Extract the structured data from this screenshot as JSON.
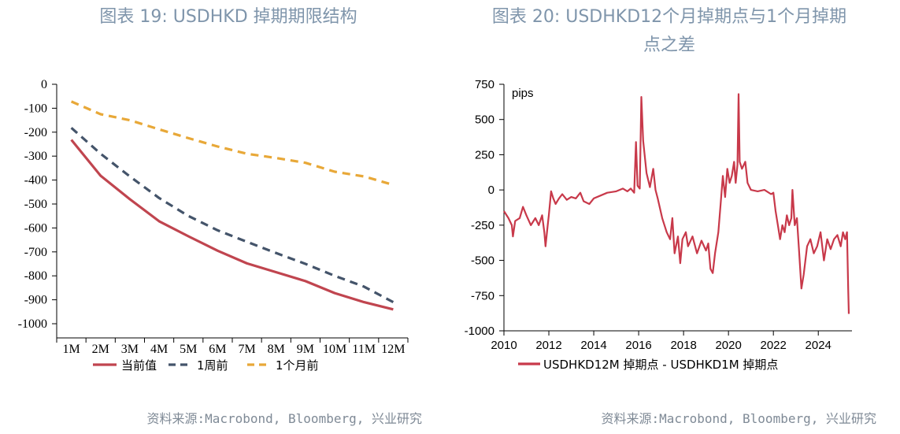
{
  "left_panel": {
    "title": "图表 19:    USDHKD 掉期期限结构",
    "source": "资料来源:Macrobond, Bloomberg, 兴业研究"
  },
  "right_panel": {
    "title_line1": "图表 20:    USDHKD12个月掉期点与1个月掉期",
    "title_line2": "点之差",
    "source": "资料来源:Macrobond, Bloomberg, 兴业研究"
  },
  "chart_data": [
    {
      "type": "line",
      "categories": [
        "1M",
        "2M",
        "3M",
        "4M",
        "5M",
        "6M",
        "7M",
        "8M",
        "9M",
        "10M",
        "11M",
        "12M"
      ],
      "ylim": [
        -1000,
        0
      ],
      "yticks": [
        "0",
        "-100",
        "-200",
        "-300",
        "-400",
        "-500",
        "-600",
        "-700",
        "-800",
        "-900",
        "-1000"
      ],
      "grid": false,
      "legend_position": "bottom",
      "series": [
        {
          "name": "当前值",
          "color": "#c0454f",
          "dash": "solid",
          "values": [
            -232,
            -382,
            -480,
            -572,
            -635,
            -695,
            -748,
            -785,
            -822,
            -872,
            -910,
            -940
          ]
        },
        {
          "name": "1周前",
          "color": "#44546a",
          "dash": "dashed",
          "values": [
            -182,
            -290,
            -385,
            -475,
            -550,
            -610,
            -658,
            -705,
            -750,
            -800,
            -845,
            -910
          ]
        },
        {
          "name": "1个月前",
          "color": "#e8a838",
          "dash": "dashed",
          "values": [
            -72,
            -125,
            -150,
            -188,
            -225,
            -260,
            -290,
            -308,
            -328,
            -365,
            -385,
            -420
          ]
        }
      ]
    },
    {
      "type": "line",
      "unit_label": "pips",
      "xlim": [
        2010,
        2025.5
      ],
      "ylim": [
        -1000,
        750
      ],
      "xticks": [
        "2010",
        "2012",
        "2014",
        "2016",
        "2018",
        "2020",
        "2022",
        "2024"
      ],
      "yticks": [
        "750",
        "500",
        "250",
        "0",
        "-250",
        "-500",
        "-750",
        "-1000"
      ],
      "grid": false,
      "legend_position": "bottom",
      "series": [
        {
          "name": "USDHKD12M 掉期点 - USDHKD1M 掉期点",
          "color": "#c8394a",
          "points": [
            [
              2010.0,
              -150
            ],
            [
              2010.2,
              -200
            ],
            [
              2010.35,
              -250
            ],
            [
              2010.4,
              -330
            ],
            [
              2010.5,
              -220
            ],
            [
              2010.7,
              -200
            ],
            [
              2010.85,
              -120
            ],
            [
              2011.0,
              -180
            ],
            [
              2011.2,
              -250
            ],
            [
              2011.4,
              -200
            ],
            [
              2011.55,
              -250
            ],
            [
              2011.7,
              -180
            ],
            [
              2011.8,
              -300
            ],
            [
              2011.85,
              -400
            ],
            [
              2011.95,
              -250
            ],
            [
              2012.0,
              -180
            ],
            [
              2012.1,
              -10
            ],
            [
              2012.2,
              -60
            ],
            [
              2012.3,
              -100
            ],
            [
              2012.45,
              -60
            ],
            [
              2012.6,
              -30
            ],
            [
              2012.8,
              -70
            ],
            [
              2013.0,
              -50
            ],
            [
              2013.2,
              -60
            ],
            [
              2013.4,
              -20
            ],
            [
              2013.55,
              -80
            ],
            [
              2013.8,
              -100
            ],
            [
              2014.0,
              -60
            ],
            [
              2014.3,
              -40
            ],
            [
              2014.6,
              -20
            ],
            [
              2015.0,
              -10
            ],
            [
              2015.3,
              10
            ],
            [
              2015.5,
              -10
            ],
            [
              2015.65,
              10
            ],
            [
              2015.8,
              -20
            ],
            [
              2015.88,
              340
            ],
            [
              2015.95,
              30
            ],
            [
              2016.05,
              10
            ],
            [
              2016.12,
              660
            ],
            [
              2016.2,
              350
            ],
            [
              2016.35,
              120
            ],
            [
              2016.5,
              20
            ],
            [
              2016.65,
              150
            ],
            [
              2016.75,
              0
            ],
            [
              2016.85,
              -60
            ],
            [
              2017.05,
              -200
            ],
            [
              2017.25,
              -300
            ],
            [
              2017.4,
              -350
            ],
            [
              2017.5,
              -200
            ],
            [
              2017.6,
              -450
            ],
            [
              2017.75,
              -330
            ],
            [
              2017.85,
              -520
            ],
            [
              2017.95,
              -350
            ],
            [
              2018.1,
              -300
            ],
            [
              2018.2,
              -400
            ],
            [
              2018.4,
              -330
            ],
            [
              2018.6,
              -450
            ],
            [
              2018.8,
              -360
            ],
            [
              2019.0,
              -430
            ],
            [
              2019.1,
              -380
            ],
            [
              2019.2,
              -560
            ],
            [
              2019.3,
              -590
            ],
            [
              2019.4,
              -450
            ],
            [
              2019.55,
              -300
            ],
            [
              2019.65,
              -100
            ],
            [
              2019.75,
              100
            ],
            [
              2019.85,
              -50
            ],
            [
              2019.95,
              150
            ],
            [
              2020.05,
              50
            ],
            [
              2020.15,
              100
            ],
            [
              2020.25,
              200
            ],
            [
              2020.32,
              50
            ],
            [
              2020.4,
              180
            ],
            [
              2020.45,
              680
            ],
            [
              2020.5,
              200
            ],
            [
              2020.6,
              150
            ],
            [
              2020.75,
              200
            ],
            [
              2020.85,
              50
            ],
            [
              2021.0,
              0
            ],
            [
              2021.3,
              -10
            ],
            [
              2021.6,
              0
            ],
            [
              2021.9,
              -30
            ],
            [
              2022.0,
              -20
            ],
            [
              2022.1,
              -150
            ],
            [
              2022.2,
              -250
            ],
            [
              2022.3,
              -350
            ],
            [
              2022.4,
              -250
            ],
            [
              2022.5,
              -300
            ],
            [
              2022.6,
              -180
            ],
            [
              2022.7,
              -250
            ],
            [
              2022.8,
              -200
            ],
            [
              2022.85,
              0
            ],
            [
              2022.95,
              -250
            ],
            [
              2023.05,
              -200
            ],
            [
              2023.15,
              -450
            ],
            [
              2023.25,
              -700
            ],
            [
              2023.35,
              -600
            ],
            [
              2023.5,
              -400
            ],
            [
              2023.65,
              -350
            ],
            [
              2023.8,
              -450
            ],
            [
              2023.95,
              -400
            ],
            [
              2024.1,
              -300
            ],
            [
              2024.25,
              -500
            ],
            [
              2024.4,
              -350
            ],
            [
              2024.55,
              -420
            ],
            [
              2024.7,
              -350
            ],
            [
              2024.85,
              -320
            ],
            [
              2025.0,
              -400
            ],
            [
              2025.1,
              -300
            ],
            [
              2025.2,
              -350
            ],
            [
              2025.28,
              -300
            ],
            [
              2025.33,
              -700
            ],
            [
              2025.36,
              -880
            ]
          ]
        }
      ]
    }
  ]
}
